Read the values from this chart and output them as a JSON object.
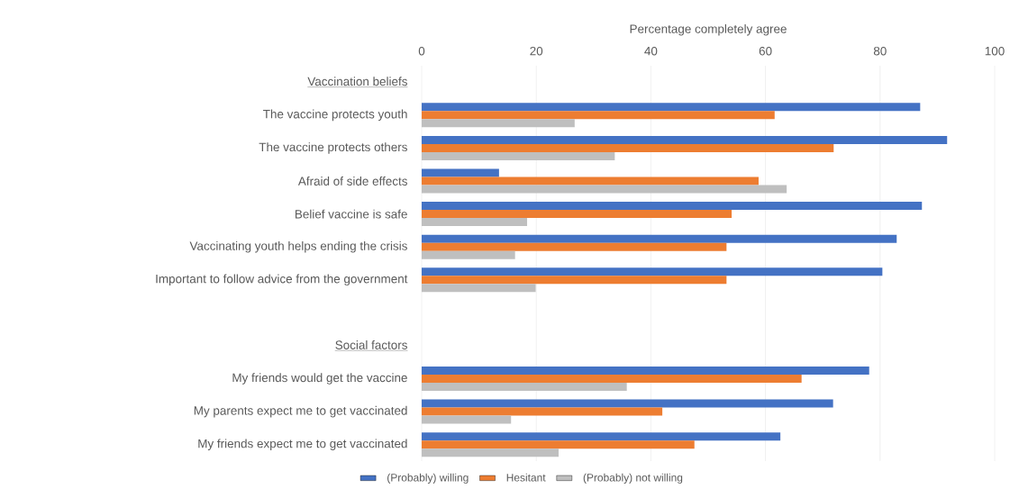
{
  "chart_data": {
    "type": "bar",
    "orientation": "horizontal",
    "xlabel": "Percentage completely agree",
    "categories": [
      "Vaccination beliefs",
      "The vaccine protects youth",
      "The vaccine protects others",
      "Afraid of side effects",
      "Belief vaccine is safe",
      "Vaccinating youth helps ending the crisis",
      "Important to follow advice from the government",
      null,
      "Social factors",
      "My friends would get the vaccine",
      "My parents expect me to get vaccinated",
      "My friends expect me to get vaccinated"
    ],
    "series": [
      {
        "name": "(Probably) willing",
        "color": "#4472c4",
        "values": [
          null,
          87.0,
          91.7,
          13.5,
          87.3,
          82.9,
          80.4,
          null,
          null,
          78.1,
          71.8,
          62.6
        ]
      },
      {
        "name": "Hesitant",
        "color": "#ed7d31",
        "values": [
          null,
          61.6,
          71.9,
          58.8,
          54.1,
          53.2,
          53.2,
          null,
          null,
          66.3,
          42.0,
          47.6
        ]
      },
      {
        "name": "(Probably) not willing",
        "color": "#bfbfbf",
        "values": [
          null,
          26.7,
          33.7,
          63.7,
          18.4,
          16.3,
          19.9,
          null,
          null,
          35.8,
          15.6,
          23.9
        ]
      }
    ],
    "xlim": [
      0,
      100
    ],
    "xticks": [
      0,
      20,
      40,
      60,
      80,
      100
    ],
    "grid": "x",
    "legend": "bottom"
  }
}
